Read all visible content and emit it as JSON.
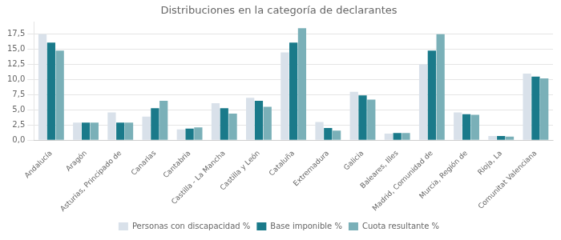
{
  "chart_data": {
    "type": "bar",
    "title": "Distribuciones en la categoría de declarantes",
    "categories": [
      "Andalucía",
      "Aragón",
      "Asturias, Principado de",
      "Canarias",
      "Cantabria",
      "Castilla - La Mancha",
      "Castilla y León",
      "Cataluña",
      "Extremadura",
      "Galicia",
      "Baleares, Illes",
      "Madrid, Comunidad de",
      "Murcia, Región de",
      "Rioja, La",
      "Comunitat Valenciana"
    ],
    "series": [
      {
        "name": "Personas con discapacidad %",
        "color": "#d9e1ea",
        "values": [
          17.5,
          2.9,
          4.6,
          3.9,
          1.8,
          6.1,
          7.0,
          14.5,
          3.0,
          8.0,
          1.1,
          12.5,
          4.6,
          0.7,
          11.0
        ]
      },
      {
        "name": "Base imponible %",
        "color": "#1a7a8a",
        "values": [
          16.1,
          2.9,
          2.9,
          5.3,
          1.9,
          5.3,
          6.5,
          16.1,
          2.0,
          7.4,
          1.2,
          14.8,
          4.3,
          0.7,
          10.5
        ]
      },
      {
        "name": "Cuota resultante %",
        "color": "#7ab0b8",
        "values": [
          14.8,
          2.9,
          2.9,
          6.5,
          2.1,
          4.4,
          5.5,
          18.5,
          1.6,
          6.7,
          1.2,
          17.5,
          4.2,
          0.6,
          10.2
        ]
      }
    ],
    "ylim": [
      0,
      19.5
    ],
    "yticks": [
      {
        "value": 0.0,
        "label": "0,0"
      },
      {
        "value": 2.5,
        "label": "2,5"
      },
      {
        "value": 5.0,
        "label": "5,0"
      },
      {
        "value": 7.5,
        "label": "7,5"
      },
      {
        "value": 10.0,
        "label": "10,0"
      },
      {
        "value": 12.5,
        "label": "12,5"
      },
      {
        "value": 15.0,
        "label": "15,0"
      },
      {
        "value": 17.5,
        "label": "17,5"
      }
    ],
    "grid": true,
    "legend": "bottom"
  }
}
